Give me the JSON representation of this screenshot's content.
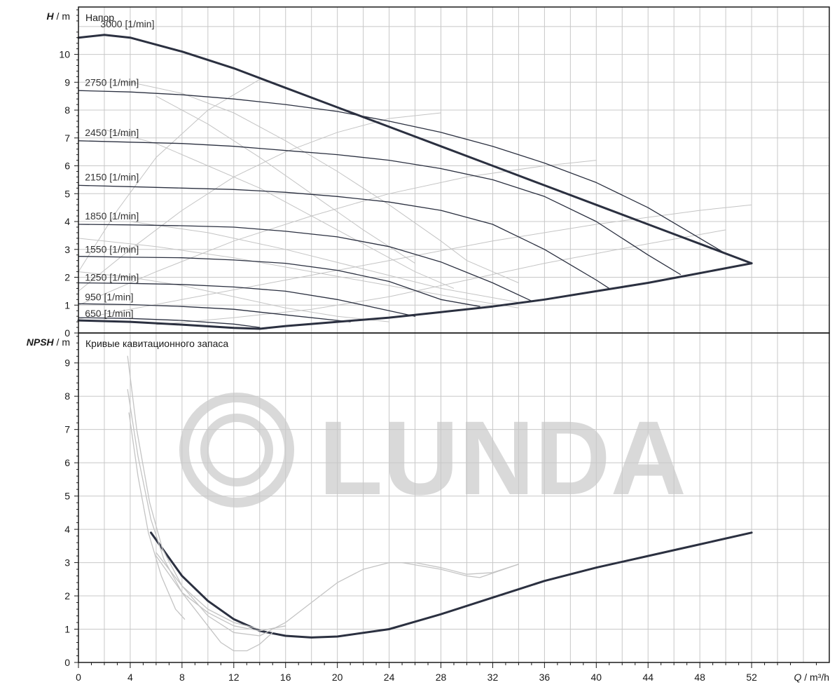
{
  "chart_data": [
    {
      "type": "line",
      "title": "Напор",
      "ylabel_symbol": "H",
      "ylabel_unit": " / m",
      "xlim": [
        0,
        58
      ],
      "ylim": [
        0,
        11.7
      ],
      "yticks": [
        0,
        1,
        2,
        3,
        4,
        5,
        6,
        7,
        8,
        9,
        10
      ],
      "xticks": [
        0,
        4,
        8,
        12,
        16,
        20,
        24,
        28,
        32,
        36,
        40,
        44,
        48,
        52
      ],
      "grid": true,
      "speed_labels": [
        {
          "text": "3000 [1/min]",
          "q": 1.7,
          "h": 10.9
        },
        {
          "text": "2750 [1/min]",
          "q": 0.5,
          "h": 8.8
        },
        {
          "text": "2450 [1/min]",
          "q": 0.5,
          "h": 7.0
        },
        {
          "text": "2150 [1/min]",
          "q": 0.5,
          "h": 5.4
        },
        {
          "text": "1850 [1/min]",
          "q": 0.5,
          "h": 4.0
        },
        {
          "text": "1550 [1/min]",
          "q": 0.5,
          "h": 2.8
        },
        {
          "text": "1250 [1/min]",
          "q": 0.5,
          "h": 1.8
        },
        {
          "text": "950 [1/min]",
          "q": 0.5,
          "h": 1.1
        },
        {
          "text": "650 [1/min]",
          "q": 0.5,
          "h": 0.5
        }
      ],
      "series": [
        {
          "speed": "3000",
          "x": [
            0,
            2,
            4,
            8,
            12,
            16,
            20,
            24,
            28,
            32,
            36,
            40,
            44,
            48,
            52
          ],
          "y": [
            10.6,
            10.7,
            10.6,
            10.1,
            9.5,
            8.8,
            8.1,
            7.4,
            6.7,
            6.0,
            5.3,
            4.6,
            3.9,
            3.2,
            2.5
          ],
          "style": "envelope"
        },
        {
          "speed": "2750",
          "x": [
            0,
            4,
            8,
            12,
            16,
            20,
            24,
            28,
            32,
            36,
            40,
            44,
            48,
            49.8
          ],
          "y": [
            8.7,
            8.65,
            8.55,
            8.4,
            8.2,
            7.95,
            7.6,
            7.2,
            6.7,
            6.1,
            5.4,
            4.5,
            3.4,
            2.9
          ],
          "style": "speed"
        },
        {
          "speed": "2450",
          "x": [
            0,
            4,
            8,
            12,
            16,
            20,
            24,
            28,
            32,
            36,
            40,
            44,
            46.5
          ],
          "y": [
            6.9,
            6.85,
            6.8,
            6.7,
            6.55,
            6.4,
            6.2,
            5.9,
            5.5,
            4.9,
            4.0,
            2.8,
            2.1
          ],
          "style": "speed"
        },
        {
          "speed": "2150",
          "x": [
            0,
            4,
            8,
            12,
            16,
            20,
            24,
            28,
            32,
            36,
            40,
            41
          ],
          "y": [
            5.3,
            5.25,
            5.2,
            5.15,
            5.05,
            4.9,
            4.7,
            4.4,
            3.9,
            3.0,
            1.9,
            1.6
          ],
          "style": "speed"
        },
        {
          "speed": "1850",
          "x": [
            0,
            4,
            8,
            12,
            16,
            20,
            24,
            28,
            32,
            35
          ],
          "y": [
            3.9,
            3.88,
            3.85,
            3.8,
            3.65,
            3.45,
            3.1,
            2.55,
            1.8,
            1.15
          ],
          "style": "speed"
        },
        {
          "speed": "1550",
          "x": [
            0,
            4,
            8,
            12,
            16,
            20,
            24,
            28,
            31
          ],
          "y": [
            2.75,
            2.72,
            2.7,
            2.62,
            2.5,
            2.25,
            1.85,
            1.2,
            0.95
          ],
          "style": "speed"
        },
        {
          "speed": "1250",
          "x": [
            0,
            4,
            8,
            12,
            16,
            20,
            24,
            26
          ],
          "y": [
            1.8,
            1.78,
            1.74,
            1.65,
            1.5,
            1.2,
            0.8,
            0.6
          ],
          "style": "speed"
        },
        {
          "speed": "950",
          "x": [
            0,
            4,
            8,
            12,
            16,
            20,
            21
          ],
          "y": [
            1.05,
            1.02,
            0.95,
            0.85,
            0.65,
            0.45,
            0.4
          ],
          "style": "speed"
        },
        {
          "speed": "650",
          "x": [
            0,
            4,
            8,
            12,
            14
          ],
          "y": [
            0.55,
            0.52,
            0.45,
            0.32,
            0.2
          ],
          "style": "speed"
        },
        {
          "speed": "min",
          "x": [
            0,
            4,
            8,
            12,
            14,
            16,
            20,
            24,
            28,
            32,
            36,
            40,
            44,
            48,
            52
          ],
          "y": [
            0.45,
            0.4,
            0.3,
            0.18,
            0.15,
            0.25,
            0.4,
            0.55,
            0.75,
            0.95,
            1.2,
            1.5,
            1.8,
            2.15,
            2.5
          ],
          "style": "envelope"
        }
      ],
      "efficiency_lines": [
        {
          "x": [
            0,
            8,
            16,
            24,
            32,
            40,
            48,
            52
          ],
          "y": [
            0.5,
            1.2,
            1.9,
            2.6,
            3.3,
            3.9,
            4.4,
            4.6
          ]
        },
        {
          "x": [
            0,
            6,
            12,
            18,
            24,
            30,
            36,
            40
          ],
          "y": [
            1.0,
            2.2,
            3.3,
            4.2,
            5.0,
            5.6,
            6.0,
            6.2
          ]
        },
        {
          "x": [
            0,
            4,
            8,
            12,
            16,
            20,
            24,
            28
          ],
          "y": [
            1.5,
            3.0,
            4.4,
            5.6,
            6.5,
            7.2,
            7.7,
            7.9
          ]
        },
        {
          "x": [
            0,
            3,
            6,
            10,
            14
          ],
          "y": [
            2.2,
            4.4,
            6.3,
            8.0,
            9.1
          ]
        },
        {
          "x": [
            4,
            8,
            12,
            16,
            20,
            24,
            28,
            30,
            34
          ],
          "y": [
            9.0,
            8.6,
            7.9,
            6.9,
            5.8,
            4.6,
            3.3,
            2.6,
            1.8
          ]
        },
        {
          "x": [
            2,
            6,
            10,
            14,
            18,
            22,
            26,
            29
          ],
          "y": [
            7.3,
            6.8,
            6.0,
            5.2,
            4.2,
            3.2,
            2.2,
            1.6
          ]
        },
        {
          "x": [
            6,
            10,
            14,
            18,
            22,
            26
          ],
          "y": [
            8.5,
            7.5,
            6.3,
            5.0,
            3.7,
            2.5
          ]
        },
        {
          "x": [
            0,
            6,
            12,
            18,
            24,
            30,
            34
          ],
          "y": [
            3.4,
            3.1,
            2.7,
            2.2,
            1.7,
            1.2,
            0.9
          ]
        },
        {
          "x": [
            0,
            4,
            8,
            12,
            16,
            20,
            24
          ],
          "y": [
            2.2,
            2.0,
            1.7,
            1.3,
            0.9,
            0.6,
            0.4
          ]
        },
        {
          "x": [
            4,
            10,
            16,
            22,
            28,
            34
          ],
          "y": [
            4.0,
            3.6,
            3.0,
            2.3,
            1.6,
            1.1
          ]
        },
        {
          "x": [
            6,
            12,
            18,
            24,
            30,
            36,
            44,
            50
          ],
          "y": [
            0.3,
            0.55,
            0.85,
            1.3,
            1.9,
            2.5,
            3.2,
            3.7
          ]
        }
      ]
    },
    {
      "type": "line",
      "title": "Кривые кавитационного запаса",
      "ylabel_symbol": "NPSH",
      "ylabel_unit": " / m",
      "xlabel_symbol": "Q",
      "xlabel_unit": " / m³/h",
      "xlim": [
        0,
        58
      ],
      "ylim": [
        0,
        9.9
      ],
      "yticks": [
        0,
        1,
        2,
        3,
        4,
        5,
        6,
        7,
        8,
        9
      ],
      "xticks": [
        0,
        4,
        8,
        12,
        16,
        20,
        24,
        28,
        32,
        36,
        40,
        44,
        48,
        52
      ],
      "grid": true,
      "series": [
        {
          "x": [
            5.6,
            8,
            10,
            12,
            14,
            16,
            18,
            20,
            24,
            28,
            32,
            36,
            40,
            44,
            48,
            52
          ],
          "y": [
            3.9,
            2.6,
            1.85,
            1.3,
            0.95,
            0.8,
            0.75,
            0.78,
            1.0,
            1.45,
            1.95,
            2.45,
            2.85,
            3.2,
            3.55,
            3.9
          ],
          "style": "main"
        },
        {
          "x": [
            3.8,
            4.5,
            5.5,
            6.5,
            8,
            10,
            12,
            14,
            16,
            18,
            20,
            22,
            24,
            26,
            28,
            30,
            32,
            34
          ],
          "y": [
            9.2,
            7.0,
            4.8,
            3.4,
            2.3,
            1.4,
            0.9,
            0.8,
            1.2,
            1.8,
            2.4,
            2.8,
            3.0,
            3.0,
            2.85,
            2.65,
            2.7,
            2.95
          ],
          "style": "thin"
        },
        {
          "x": [
            3.8,
            4.6,
            5.6,
            6.6,
            8,
            10,
            11,
            12,
            13,
            14,
            15
          ],
          "y": [
            8.2,
            6.2,
            4.3,
            3.1,
            2.1,
            1.1,
            0.6,
            0.35,
            0.35,
            0.55,
            0.9
          ],
          "style": "thin"
        },
        {
          "x": [
            3.9,
            4.6,
            5.4,
            6.4,
            7.5,
            8.2
          ],
          "y": [
            7.5,
            5.6,
            3.9,
            2.6,
            1.6,
            1.3
          ],
          "style": "thin"
        },
        {
          "x": [
            6,
            8,
            10,
            12,
            14
          ],
          "y": [
            3.3,
            2.3,
            1.6,
            1.2,
            1.0
          ],
          "style": "thin"
        },
        {
          "x": [
            6,
            8,
            10,
            12,
            14,
            16
          ],
          "y": [
            3.2,
            2.1,
            1.5,
            1.1,
            0.95,
            1.1
          ],
          "style": "thin"
        },
        {
          "x": [
            25,
            28,
            30,
            31,
            34
          ],
          "y": [
            3.0,
            2.8,
            2.6,
            2.55,
            2.95
          ],
          "style": "thin"
        }
      ]
    }
  ],
  "watermark": "LUNDA",
  "colors": {
    "axis": "#1a1a1a",
    "grid": "#c8c8c8",
    "envelope": "#2b3040",
    "speed_curve": "#2b3040",
    "efficiency": "#c4c4c4",
    "watermark": "#d9d9d9"
  }
}
